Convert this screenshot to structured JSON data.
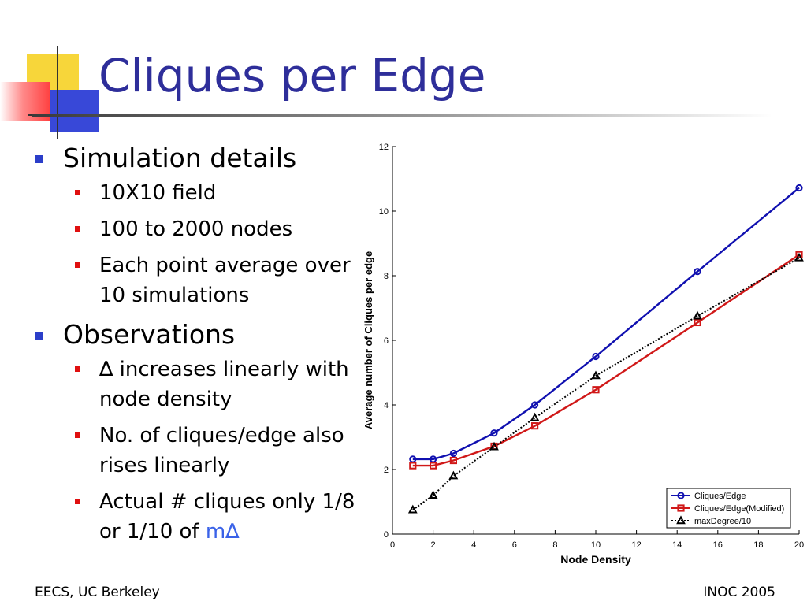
{
  "slide": {
    "title": "Cliques per Edge",
    "footer_left": "EECS, UC Berkeley",
    "footer_right": "INOC 2005"
  },
  "bullets": [
    {
      "text": "Simulation details",
      "sub": [
        {
          "text": "10X10 field"
        },
        {
          "text": "100 to 2000 nodes"
        },
        {
          "text": "Each point average over 10 simulations"
        }
      ]
    },
    {
      "text": "Observations",
      "sub": [
        {
          "text": "∆ increases linearly with node density"
        },
        {
          "text": "No. of cliques/edge also rises linearly"
        },
        {
          "pre": "Actual # cliques only 1/8 or 1/10 of ",
          "hl": "m∆"
        }
      ]
    }
  ],
  "colors": {
    "title": "#2e2e9a",
    "bullet_l1": "#2b3ec9",
    "bullet_l2": "#e01010",
    "highlight": "#3a62e8"
  },
  "chart_data": {
    "type": "line",
    "xlabel": "Node Density",
    "ylabel": "Average number of Cliques  per edge",
    "xlim": [
      0,
      20
    ],
    "ylim": [
      0,
      12
    ],
    "xticks": [
      0,
      2,
      4,
      6,
      8,
      10,
      12,
      14,
      16,
      18,
      20
    ],
    "yticks": [
      0,
      2,
      4,
      6,
      8,
      10,
      12
    ],
    "grid": false,
    "legend_position": "bottom-right",
    "series": [
      {
        "name": "Cliques/Edge",
        "color": "#1010b0",
        "marker": "circle",
        "style": "solid",
        "x": [
          1,
          2,
          3,
          5,
          7,
          10,
          15,
          20
        ],
        "y": [
          2.32,
          2.32,
          2.5,
          3.13,
          4.0,
          5.5,
          8.13,
          10.72
        ]
      },
      {
        "name": "Cliques/Edge(Modified)",
        "color": "#d01818",
        "marker": "square",
        "style": "solid",
        "x": [
          1,
          2,
          3,
          5,
          7,
          10,
          15,
          20
        ],
        "y": [
          2.12,
          2.12,
          2.28,
          2.72,
          3.35,
          4.47,
          6.55,
          8.65
        ]
      },
      {
        "name": "maxDegree/10",
        "color": "#000000",
        "marker": "triangle",
        "style": "dotted",
        "x": [
          1,
          2,
          3,
          5,
          7,
          10,
          15,
          20
        ],
        "y": [
          0.75,
          1.2,
          1.8,
          2.7,
          3.6,
          4.9,
          6.75,
          8.55
        ]
      }
    ]
  }
}
